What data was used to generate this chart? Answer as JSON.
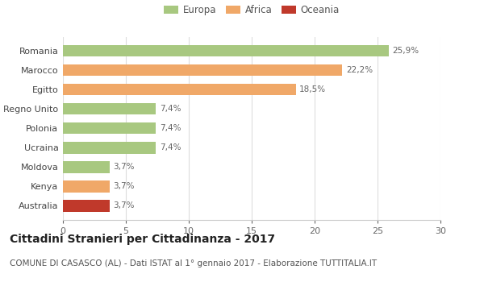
{
  "categories": [
    "Australia",
    "Kenya",
    "Moldova",
    "Ucraina",
    "Polonia",
    "Regno Unito",
    "Egitto",
    "Marocco",
    "Romania"
  ],
  "values": [
    3.7,
    3.7,
    3.7,
    7.4,
    7.4,
    7.4,
    18.5,
    22.2,
    25.9
  ],
  "labels": [
    "3,7%",
    "3,7%",
    "3,7%",
    "7,4%",
    "7,4%",
    "7,4%",
    "18,5%",
    "22,2%",
    "25,9%"
  ],
  "colors": [
    "#c0392b",
    "#f0a868",
    "#a8c880",
    "#a8c880",
    "#a8c880",
    "#a8c880",
    "#f0a868",
    "#f0a868",
    "#a8c880"
  ],
  "legend": [
    {
      "label": "Europa",
      "color": "#a8c880"
    },
    {
      "label": "Africa",
      "color": "#f0a868"
    },
    {
      "label": "Oceania",
      "color": "#c0392b"
    }
  ],
  "xlim": [
    0,
    30
  ],
  "xticks": [
    0,
    5,
    10,
    15,
    20,
    25,
    30
  ],
  "title": "Cittadini Stranieri per Cittadinanza - 2017",
  "subtitle": "COMUNE DI CASASCO (AL) - Dati ISTAT al 1° gennaio 2017 - Elaborazione TUTTITALIA.IT",
  "background_color": "#ffffff",
  "bar_edge_color": "none",
  "title_fontsize": 10,
  "subtitle_fontsize": 7.5,
  "label_fontsize": 7.5,
  "tick_fontsize": 8,
  "legend_fontsize": 8.5
}
